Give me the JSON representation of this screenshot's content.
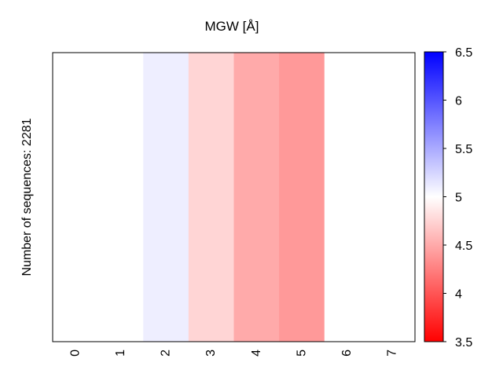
{
  "chart_data": {
    "type": "heatmap",
    "title": "MGW [Å]",
    "xlabel": "",
    "ylabel": "Number of sequences: 2281",
    "x_tick_labels": [
      "0",
      "1",
      "2",
      "3",
      "4",
      "5",
      "6",
      "7"
    ],
    "values": [
      5.0,
      5.0,
      5.1,
      4.75,
      4.5,
      4.4,
      5.0,
      5.0
    ],
    "colorbar": {
      "colormap": "bwr",
      "low_color": "#ff0000",
      "mid_color": "#ffffff",
      "high_color": "#0000ff",
      "vmin": 3.5,
      "vmax": 6.5,
      "ticks": [
        "3.5",
        "4",
        "4.5",
        "5",
        "5.5",
        "6",
        "6.5"
      ]
    },
    "grid": false
  }
}
